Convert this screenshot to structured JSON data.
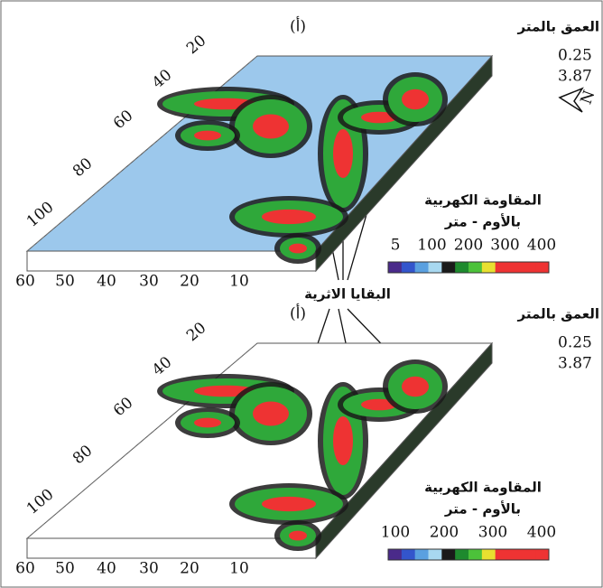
{
  "panels": [
    {
      "label": "(أ)",
      "depth_title": "العمق بالمتر",
      "depths": [
        "0.25",
        "3.87"
      ],
      "legend_title": [
        "المقاومة الكهربية",
        "بالأوم - متر"
      ],
      "legend_ticks": [
        "5",
        "100",
        "200",
        "300",
        "400"
      ],
      "x_ticks": [
        "60",
        "50",
        "40",
        "30",
        "20",
        "10"
      ],
      "y_ticks": [
        "100",
        "80",
        "60",
        "40",
        "20"
      ]
    },
    {
      "label": "(أ)",
      "depth_title": "العمق بالمتر",
      "depths": [
        "0.25",
        "3.87"
      ],
      "legend_title": [
        "المقاومة الكهربية",
        "بالأوم - متر"
      ],
      "legend_ticks": [
        "100",
        "200",
        "300",
        "400"
      ],
      "x_ticks": [
        "60",
        "50",
        "40",
        "30",
        "20",
        "10"
      ],
      "y_ticks": [
        "100",
        "80",
        "60",
        "40",
        "20"
      ]
    }
  ],
  "north": "N",
  "annotation": "البقايا الاثرية"
}
